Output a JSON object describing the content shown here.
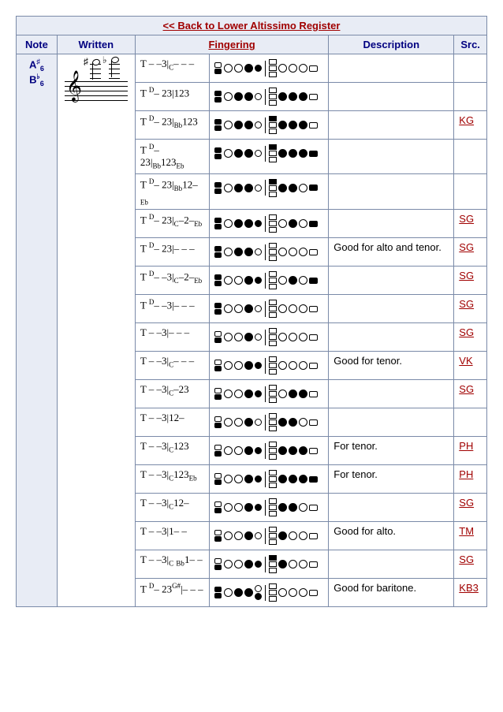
{
  "back_link": "<< Back to Lower Altissimo Register",
  "headers": {
    "note": "Note",
    "written": "Written",
    "fingering": "Fingering",
    "description": "Description",
    "src": "Src."
  },
  "note_label_1": "A",
  "note_sharp": "♯",
  "note_sub_1": "6",
  "note_label_2": "B",
  "note_flat": "♭",
  "note_sub_2": "6",
  "rows": [
    {
      "ft": "T – –3|C– – –",
      "desc": "",
      "src": "",
      "oct": 0,
      "l": [
        0,
        0,
        1
      ],
      "lc": 1,
      "side": [
        0,
        0,
        0
      ],
      "r": [
        0,
        0,
        0
      ],
      "rc": 0
    },
    {
      "ft": "T D– 23|123",
      "desc": "",
      "src": "",
      "oct": 1,
      "l": [
        0,
        1,
        1
      ],
      "lc": 0,
      "side": [
        0,
        0,
        0
      ],
      "r": [
        1,
        1,
        1
      ],
      "rc": 0
    },
    {
      "ft": "T D– 23|Bb123",
      "desc": "",
      "src": "KG",
      "oct": 1,
      "l": [
        0,
        1,
        1
      ],
      "lc": 0,
      "side": [
        1,
        0,
        0
      ],
      "r": [
        1,
        1,
        1
      ],
      "rc": 0
    },
    {
      "ft": "T D– 23|Bb123Eb",
      "desc": "",
      "src": "",
      "oct": 1,
      "l": [
        0,
        1,
        1
      ],
      "lc": 0,
      "side": [
        1,
        0,
        0
      ],
      "r": [
        1,
        1,
        1
      ],
      "rc": 1
    },
    {
      "ft": "T D– 23|Bb12–Eb",
      "desc": "",
      "src": "",
      "oct": 1,
      "l": [
        0,
        1,
        1
      ],
      "lc": 0,
      "side": [
        1,
        0,
        0
      ],
      "r": [
        1,
        1,
        0
      ],
      "rc": 1
    },
    {
      "ft": "T D– 23|C–2–Eb",
      "desc": "",
      "src": "SG",
      "oct": 1,
      "l": [
        0,
        1,
        1
      ],
      "lc": 1,
      "side": [
        0,
        0,
        0
      ],
      "r": [
        0,
        1,
        0
      ],
      "rc": 1
    },
    {
      "ft": "T D– 23|– – –",
      "desc": "Good for alto and tenor.",
      "src": "SG",
      "oct": 1,
      "l": [
        0,
        1,
        1
      ],
      "lc": 0,
      "side": [
        0,
        0,
        0
      ],
      "r": [
        0,
        0,
        0
      ],
      "rc": 0
    },
    {
      "ft": "T D– –3|C–2–Eb",
      "desc": "",
      "src": "SG",
      "oct": 1,
      "l": [
        0,
        0,
        1
      ],
      "lc": 1,
      "side": [
        0,
        0,
        0
      ],
      "r": [
        0,
        1,
        0
      ],
      "rc": 1
    },
    {
      "ft": "T D– –3|– – –",
      "desc": "",
      "src": "SG",
      "oct": 1,
      "l": [
        0,
        0,
        1
      ],
      "lc": 0,
      "side": [
        0,
        0,
        0
      ],
      "r": [
        0,
        0,
        0
      ],
      "rc": 0
    },
    {
      "ft": "T – –3|– – –",
      "desc": "",
      "src": "SG",
      "oct": 0,
      "l": [
        0,
        0,
        1
      ],
      "lc": 0,
      "side": [
        0,
        0,
        0
      ],
      "r": [
        0,
        0,
        0
      ],
      "rc": 0
    },
    {
      "ft": "T – –3|C– – –",
      "desc": "Good for tenor.",
      "src": "VK",
      "oct": 0,
      "l": [
        0,
        0,
        1
      ],
      "lc": 1,
      "side": [
        0,
        0,
        0
      ],
      "r": [
        0,
        0,
        0
      ],
      "rc": 0
    },
    {
      "ft": "T – –3|C–23",
      "desc": "",
      "src": "SG",
      "oct": 0,
      "l": [
        0,
        0,
        1
      ],
      "lc": 1,
      "side": [
        0,
        0,
        0
      ],
      "r": [
        0,
        1,
        1
      ],
      "rc": 0
    },
    {
      "ft": "T – –3|12–",
      "desc": "",
      "src": "",
      "oct": 0,
      "l": [
        0,
        0,
        1
      ],
      "lc": 0,
      "side": [
        0,
        0,
        0
      ],
      "r": [
        1,
        1,
        0
      ],
      "rc": 0
    },
    {
      "ft": "T – –3|C123",
      "desc": "For tenor.",
      "src": "PH",
      "oct": 0,
      "l": [
        0,
        0,
        1
      ],
      "lc": 1,
      "side": [
        0,
        0,
        0
      ],
      "r": [
        1,
        1,
        1
      ],
      "rc": 0
    },
    {
      "ft": "T – –3|C123Eb",
      "desc": "For tenor.",
      "src": "PH",
      "oct": 0,
      "l": [
        0,
        0,
        1
      ],
      "lc": 1,
      "side": [
        0,
        0,
        0
      ],
      "r": [
        1,
        1,
        1
      ],
      "rc": 1
    },
    {
      "ft": "T – –3|C12–",
      "desc": "",
      "src": "SG",
      "oct": 0,
      "l": [
        0,
        0,
        1
      ],
      "lc": 1,
      "side": [
        0,
        0,
        0
      ],
      "r": [
        1,
        1,
        0
      ],
      "rc": 0
    },
    {
      "ft": "T – –3|1– –",
      "desc": "Good for alto.",
      "src": "TM",
      "oct": 0,
      "l": [
        0,
        0,
        1
      ],
      "lc": 0,
      "side": [
        0,
        0,
        0
      ],
      "r": [
        1,
        0,
        0
      ],
      "rc": 0
    },
    {
      "ft": "T – –3|C Bb1– –",
      "desc": "",
      "src": "SG",
      "oct": 0,
      "l": [
        0,
        0,
        1
      ],
      "lc": 1,
      "side": [
        1,
        0,
        0
      ],
      "r": [
        1,
        0,
        0
      ],
      "rc": 0
    },
    {
      "ft": "T D– 23G#|– – –",
      "desc": "Good for baritone.",
      "src": "KB3",
      "oct": 1,
      "l": [
        0,
        1,
        1
      ],
      "lc": 0,
      "side": [
        0,
        0,
        0
      ],
      "r": [
        0,
        0,
        0
      ],
      "rc": 0,
      "gs": 1
    }
  ]
}
